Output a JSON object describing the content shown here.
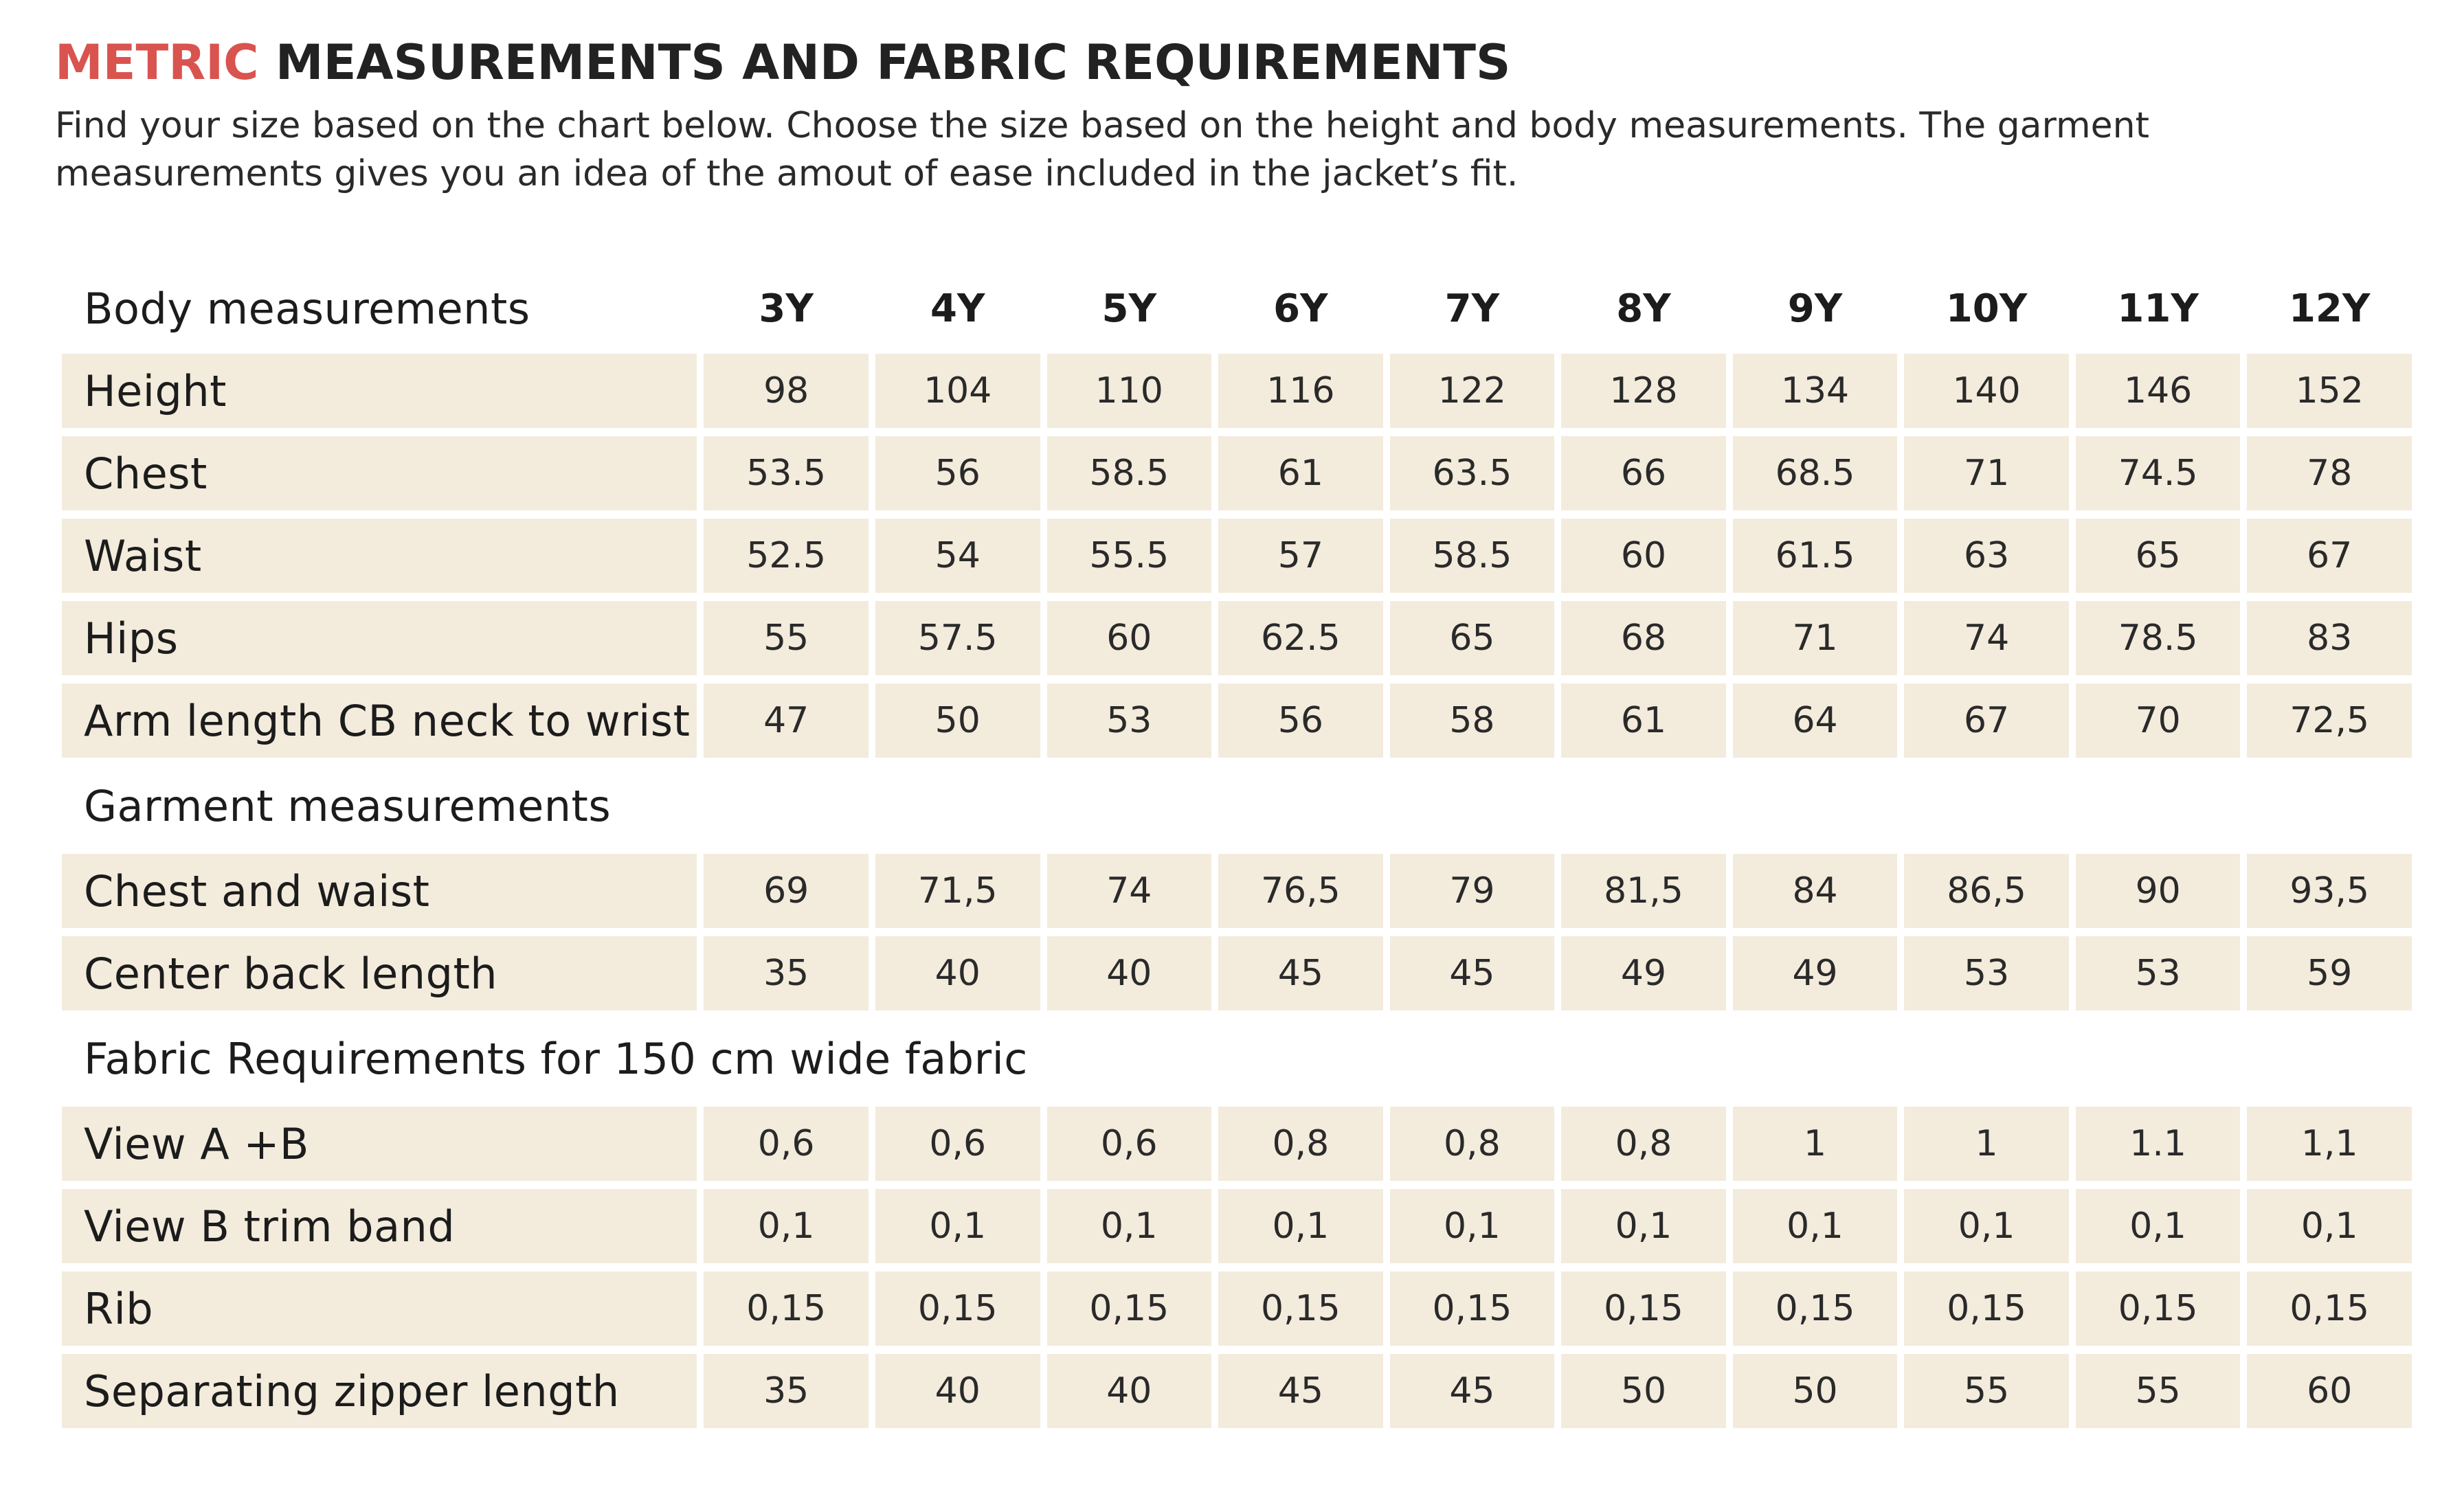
{
  "title": {
    "accent": "METRIC",
    "rest": "MEASUREMENTS AND FABRIC REQUIREMENTS"
  },
  "intro": "Find your size based on the chart below. Choose the size based on the height and body measurements. The garment measurements gives you an idea of the amout of ease included in the jacket’s fit.",
  "colors": {
    "accent": "#d9534f",
    "cell_bg": "#f3ebdc",
    "text": "#1c1c1c"
  },
  "header": {
    "label": "Body measurements",
    "sizes": [
      "3Y",
      "4Y",
      "5Y",
      "6Y",
      "7Y",
      "8Y",
      "9Y",
      "10Y",
      "11Y",
      "12Y"
    ]
  },
  "body_rows": [
    {
      "label": "Height",
      "values": [
        "98",
        "104",
        "110",
        "116",
        "122",
        "128",
        "134",
        "140",
        "146",
        "152"
      ]
    },
    {
      "label": "Chest",
      "values": [
        "53.5",
        "56",
        "58.5",
        "61",
        "63.5",
        "66",
        "68.5",
        "71",
        "74.5",
        "78"
      ]
    },
    {
      "label": "Waist",
      "values": [
        "52.5",
        "54",
        "55.5",
        "57",
        "58.5",
        "60",
        "61.5",
        "63",
        "65",
        "67"
      ]
    },
    {
      "label": "Hips",
      "values": [
        "55",
        "57.5",
        "60",
        "62.5",
        "65",
        "68",
        "71",
        "74",
        "78.5",
        "83"
      ]
    },
    {
      "label": "Arm length CB neck to wrist",
      "values": [
        "47",
        "50",
        "53",
        "56",
        "58",
        "61",
        "64",
        "67",
        "70",
        "72,5"
      ]
    }
  ],
  "garment_section": "Garment measurements",
  "garment_rows": [
    {
      "label": "Chest and waist",
      "values": [
        "69",
        "71,5",
        "74",
        "76,5",
        "79",
        "81,5",
        "84",
        "86,5",
        "90",
        "93,5"
      ]
    },
    {
      "label": "Center back length",
      "values": [
        "35",
        "40",
        "40",
        "45",
        "45",
        "49",
        "49",
        "53",
        "53",
        "59"
      ]
    }
  ],
  "fabric_section": "Fabric Requirements for 150 cm wide fabric",
  "fabric_rows": [
    {
      "label": "View A +B",
      "values": [
        "0,6",
        "0,6",
        "0,6",
        "0,8",
        "0,8",
        "0,8",
        "1",
        "1",
        "1.1",
        "1,1"
      ]
    },
    {
      "label": "View B trim band",
      "values": [
        "0,1",
        "0,1",
        "0,1",
        "0,1",
        "0,1",
        "0,1",
        "0,1",
        "0,1",
        "0,1",
        "0,1"
      ]
    },
    {
      "label": "Rib",
      "values": [
        "0,15",
        "0,15",
        "0,15",
        "0,15",
        "0,15",
        "0,15",
        "0,15",
        "0,15",
        "0,15",
        "0,15"
      ]
    },
    {
      "label": "Separating zipper length",
      "values": [
        "35",
        "40",
        "40",
        "45",
        "45",
        "50",
        "50",
        "55",
        "55",
        "60"
      ]
    }
  ]
}
